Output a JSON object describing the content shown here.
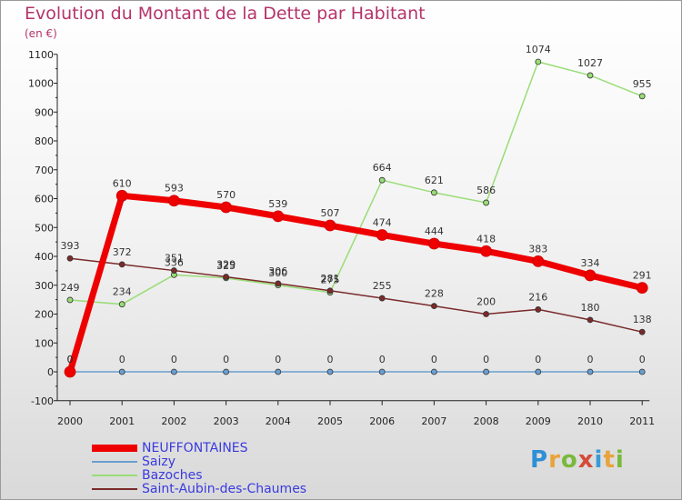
{
  "title": "Evolution du Montant de la Dette par Habitant",
  "unit_label": "(en €)",
  "logo_text": "Proxiti",
  "chart_data": {
    "type": "line",
    "title": "Evolution du Montant de la Dette par Habitant",
    "subtitle": "(en €)",
    "xlabel": "",
    "ylabel": "",
    "x": [
      "2000",
      "2001",
      "2002",
      "2003",
      "2004",
      "2005",
      "2006",
      "2007",
      "2008",
      "2009",
      "2010",
      "2011"
    ],
    "ylim": [
      -100,
      1100
    ],
    "yticks": [
      -100,
      0,
      100,
      200,
      300,
      400,
      500,
      600,
      700,
      800,
      900,
      1000,
      1100
    ],
    "grid": false,
    "legend_position": "bottom-left",
    "series": [
      {
        "name": "NEUFFONTAINES",
        "color": "#ee0000",
        "line_width": 7,
        "marker_radius": 6,
        "values": [
          0,
          610,
          593,
          570,
          539,
          507,
          474,
          444,
          418,
          383,
          334,
          291
        ]
      },
      {
        "name": "Saizy",
        "color": "#6a9fd0",
        "line_width": 1.5,
        "marker_radius": 3,
        "values": [
          0,
          0,
          0,
          0,
          0,
          0,
          0,
          0,
          0,
          0,
          0,
          0
        ]
      },
      {
        "name": "Bazoches",
        "color": "#99dd77",
        "line_width": 1.5,
        "marker_radius": 3,
        "values": [
          249,
          234,
          336,
          325,
          300,
          275,
          664,
          621,
          586,
          1074,
          1027,
          955
        ]
      },
      {
        "name": "Saint-Aubin-des-Chaumes",
        "color": "#7a2a2a",
        "line_width": 1.5,
        "marker_radius": 3,
        "values": [
          393,
          372,
          351,
          329,
          306,
          281,
          255,
          228,
          200,
          216,
          180,
          138
        ]
      }
    ]
  }
}
